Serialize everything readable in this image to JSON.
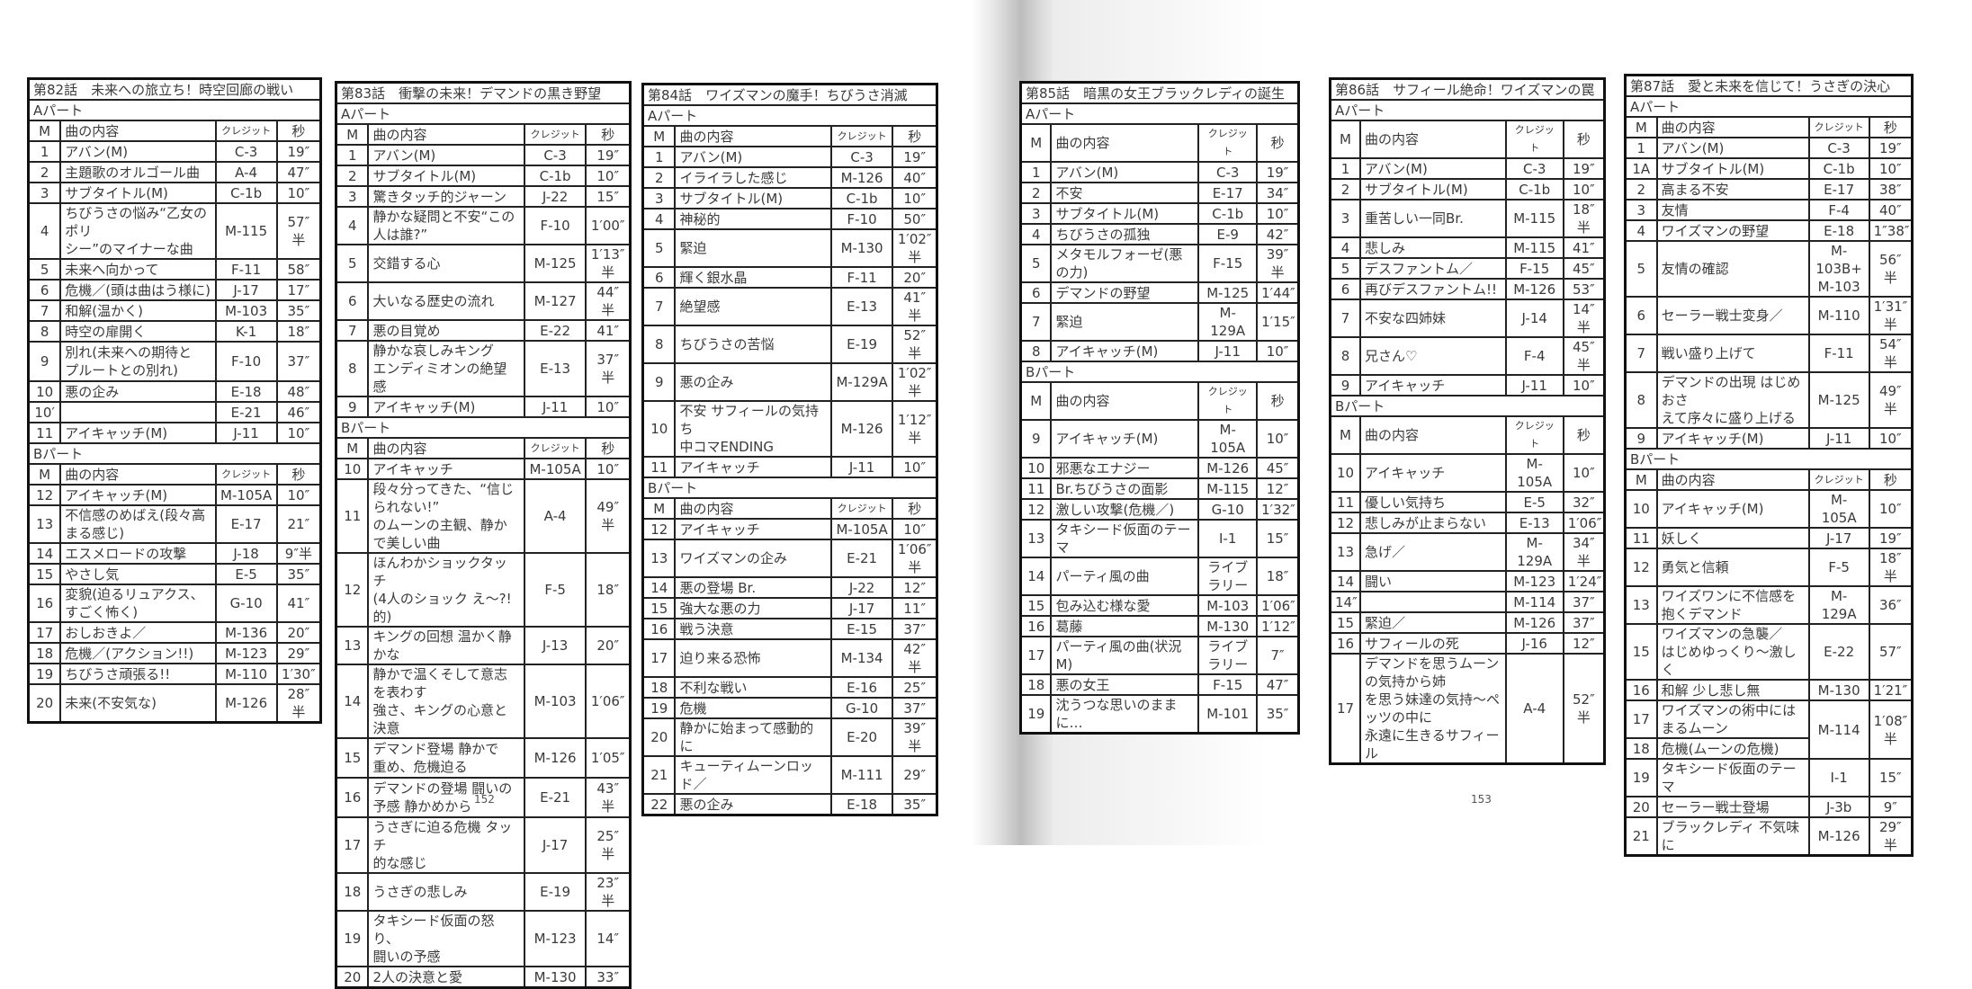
{
  "page_numbers": {
    "left": "152",
    "right": "153"
  },
  "headers": {
    "m": "M",
    "content": "曲の内容",
    "credit": "クレジット",
    "sec": "秒"
  },
  "parts": {
    "a": "Aパート",
    "b": "Bパート"
  },
  "episodes": [
    {
      "title": "第82話　未来への旅立ち！時空回廊の戦い",
      "a_rows": [
        {
          "m": "1",
          "content": "アバン(M)",
          "credit": "C-3",
          "sec": "19″"
        },
        {
          "m": "2",
          "content": "主題歌のオルゴール曲",
          "credit": "A-4",
          "sec": "47″"
        },
        {
          "m": "3",
          "content": "サブタイトル(M)",
          "credit": "C-1b",
          "sec": "10″"
        },
        {
          "m": "4",
          "content": "ちびうさの悩み“乙女のポリ\nシー”のマイナーな曲",
          "credit": "M-115",
          "sec": "57″半"
        },
        {
          "m": "5",
          "content": "未来へ向かって",
          "credit": "F-11",
          "sec": "58″"
        },
        {
          "m": "6",
          "content": "危機／(頭は曲はう様に)",
          "credit": "J-17",
          "sec": "17″"
        },
        {
          "m": "7",
          "content": "和解(温かく)",
          "credit": "M-103",
          "sec": "35″"
        },
        {
          "m": "8",
          "content": "時空の扉開く",
          "credit": "K-1",
          "sec": "18″"
        },
        {
          "m": "9",
          "content": "別れ(未来への期待と\nプルートとの別れ)",
          "credit": "F-10",
          "sec": "37″"
        },
        {
          "m": "10",
          "content": "悪の企み",
          "credit": "E-18",
          "sec": "48″"
        },
        {
          "m": "10′",
          "content": "",
          "credit": "E-21",
          "sec": "46″"
        },
        {
          "m": "11",
          "content": "アイキャッチ(M)",
          "credit": "J-11",
          "sec": "10″"
        }
      ],
      "b_rows": [
        {
          "m": "12",
          "content": "アイキャッチ(M)",
          "credit": "M-105A",
          "sec": "10″"
        },
        {
          "m": "13",
          "content": "不信感のめばえ(段々高まる感じ)",
          "credit": "E-17",
          "sec": "21″"
        },
        {
          "m": "14",
          "content": "エスメロードの攻撃",
          "credit": "J-18",
          "sec": "9″半"
        },
        {
          "m": "15",
          "content": "やさし気",
          "credit": "E-5",
          "sec": "35″"
        },
        {
          "m": "16",
          "content": "変貌(迫るリュアクス、すごく怖く)",
          "credit": "G-10",
          "sec": "41″"
        },
        {
          "m": "17",
          "content": "おしおきよ／",
          "credit": "M-136",
          "sec": "20″"
        },
        {
          "m": "18",
          "content": "危機／(アクション!!)",
          "credit": "M-123",
          "sec": "29″"
        },
        {
          "m": "19",
          "content": "ちびうさ頑張る!!",
          "credit": "M-110",
          "sec": "1′30″"
        },
        {
          "m": "20",
          "content": "未来(不安気な)",
          "credit": "M-126",
          "sec": "28″半"
        }
      ]
    },
    {
      "title": "第83話　衝撃の未来！デマンドの黒き野望",
      "a_rows": [
        {
          "m": "1",
          "content": "アバン(M)",
          "credit": "C-3",
          "sec": "19″"
        },
        {
          "m": "2",
          "content": "サブタイトル(M)",
          "credit": "C-1b",
          "sec": "10″"
        },
        {
          "m": "3",
          "content": "驚きタッチ的ジャーン",
          "credit": "J-22",
          "sec": "15″"
        },
        {
          "m": "4",
          "content": "静かな疑問と不安“この人は誰?”",
          "credit": "F-10",
          "sec": "1′00″"
        },
        {
          "m": "5",
          "content": "交錯する心",
          "credit": "M-125",
          "sec": "1′13″半"
        },
        {
          "m": "6",
          "content": "大いなる歴史の流れ",
          "credit": "M-127",
          "sec": "44″半"
        },
        {
          "m": "7",
          "content": "悪の目覚め",
          "credit": "E-22",
          "sec": "41″"
        },
        {
          "m": "8",
          "content": "静かな哀しみキング\nエンディミオンの絶望感",
          "credit": "E-13",
          "sec": "37″半"
        },
        {
          "m": "9",
          "content": "アイキャッチ(M)",
          "credit": "J-11",
          "sec": "10″"
        }
      ],
      "b_rows": [
        {
          "m": "10",
          "content": "アイキャッチ",
          "credit": "M-105A",
          "sec": "10″"
        },
        {
          "m": "11",
          "content": "段々分ってきた、“信じられない!”\nのムーンの主観、静かで美しい曲",
          "credit": "A-4",
          "sec": "49″半"
        },
        {
          "m": "12",
          "content": "ほんわかショックタッチ\n(4人のショック え〜?!的)",
          "credit": "F-5",
          "sec": "18″"
        },
        {
          "m": "13",
          "content": "キングの回想 温かく静かな",
          "credit": "J-13",
          "sec": "20″"
        },
        {
          "m": "14",
          "content": "静かで温くそして意志を表わす\n強さ、キングの心意と決意",
          "credit": "M-103",
          "sec": "1′06″"
        },
        {
          "m": "15",
          "content": "デマンド登場 静かで\n重め、危機迫る",
          "credit": "M-126",
          "sec": "1′05″"
        },
        {
          "m": "16",
          "content": "デマンドの登場 闘いの\n予感 静かめから",
          "credit": "E-21",
          "sec": "43″半"
        },
        {
          "m": "17",
          "content": "うさぎに迫る危機 タッチ\n的な感じ",
          "credit": "J-17",
          "sec": "25″半"
        },
        {
          "m": "18",
          "content": "うさぎの悲しみ",
          "credit": "E-19",
          "sec": "23″半"
        },
        {
          "m": "19",
          "content": "タキシード仮面の怒り、\n闘いの予感",
          "credit": "M-123",
          "sec": "14″"
        },
        {
          "m": "20",
          "content": "2人の決意と愛",
          "credit": "M-130",
          "sec": "33″"
        }
      ]
    },
    {
      "title": "第84話　ワイズマンの魔手！ちびうさ消滅",
      "a_rows": [
        {
          "m": "1",
          "content": "アバン(M)",
          "credit": "C-3",
          "sec": "19″"
        },
        {
          "m": "2",
          "content": "イライラした感じ",
          "credit": "M-126",
          "sec": "40″"
        },
        {
          "m": "3",
          "content": "サブタイトル(M)",
          "credit": "C-1b",
          "sec": "10″"
        },
        {
          "m": "4",
          "content": "神秘的",
          "credit": "F-10",
          "sec": "50″"
        },
        {
          "m": "5",
          "content": "緊迫",
          "credit": "M-130",
          "sec": "1′02″半"
        },
        {
          "m": "6",
          "content": "輝く銀水晶",
          "credit": "F-11",
          "sec": "20″"
        },
        {
          "m": "7",
          "content": "絶望感",
          "credit": "E-13",
          "sec": "41″半"
        },
        {
          "m": "8",
          "content": "ちびうさの苦悩",
          "credit": "E-19",
          "sec": "52″半"
        },
        {
          "m": "9",
          "content": "悪の企み",
          "credit": "M-129A",
          "sec": "1′02″半"
        },
        {
          "m": "10",
          "content": "不安 サフィールの気持ち\n中コマENDING",
          "credit": "M-126",
          "sec": "1′12″半"
        },
        {
          "m": "11",
          "content": "アイキャッチ",
          "credit": "J-11",
          "sec": "10″"
        }
      ],
      "b_rows": [
        {
          "m": "12",
          "content": "アイキャッチ",
          "credit": "M-105A",
          "sec": "10″"
        },
        {
          "m": "13",
          "content": "ワイズマンの企み",
          "credit": "E-21",
          "sec": "1′06″半"
        },
        {
          "m": "14",
          "content": "悪の登場 Br.",
          "credit": "J-22",
          "sec": "12″"
        },
        {
          "m": "15",
          "content": "強大な悪の力",
          "credit": "J-17",
          "sec": "11″"
        },
        {
          "m": "16",
          "content": "戦う決意",
          "credit": "E-15",
          "sec": "37″"
        },
        {
          "m": "17",
          "content": "迫り来る恐怖",
          "credit": "M-134",
          "sec": "42″半"
        },
        {
          "m": "18",
          "content": "不利な戦い",
          "credit": "E-16",
          "sec": "25″"
        },
        {
          "m": "19",
          "content": "危機",
          "credit": "G-10",
          "sec": "37″"
        },
        {
          "m": "20",
          "content": "静かに始まって感動的に",
          "credit": "E-20",
          "sec": "39″半"
        },
        {
          "m": "21",
          "content": "キューティムーンロッド／",
          "credit": "M-111",
          "sec": "29″"
        },
        {
          "m": "22",
          "content": "悪の企み",
          "credit": "E-18",
          "sec": "35″"
        }
      ]
    },
    {
      "title": "第85話　暗黒の女王ブラックレディの誕生",
      "a_rows": [
        {
          "m": "1",
          "content": "アバン(M)",
          "credit": "C-3",
          "sec": "19″"
        },
        {
          "m": "2",
          "content": "不安",
          "credit": "E-17",
          "sec": "34″"
        },
        {
          "m": "3",
          "content": "サブタイトル(M)",
          "credit": "C-1b",
          "sec": "10″"
        },
        {
          "m": "4",
          "content": "ちびうさの孤独",
          "credit": "E-9",
          "sec": "42″"
        },
        {
          "m": "5",
          "content": "メタモルフォーゼ(悪の力)",
          "credit": "F-15",
          "sec": "39″半"
        },
        {
          "m": "6",
          "content": "デマンドの野望",
          "credit": "M-125",
          "sec": "1′44″"
        },
        {
          "m": "7",
          "content": "緊迫",
          "credit": "M-129A",
          "sec": "1′15″"
        },
        {
          "m": "8",
          "content": "アイキャッチ(M)",
          "credit": "J-11",
          "sec": "10″"
        }
      ],
      "b_rows": [
        {
          "m": "9",
          "content": "アイキャッチ(M)",
          "credit": "M-105A",
          "sec": "10″"
        },
        {
          "m": "10",
          "content": "邪悪なエナジー",
          "credit": "M-126",
          "sec": "45″"
        },
        {
          "m": "11",
          "content": "Br.ちびうさの面影",
          "credit": "M-115",
          "sec": "12″"
        },
        {
          "m": "12",
          "content": "激しい攻撃(危機／)",
          "credit": "G-10",
          "sec": "1′32″"
        },
        {
          "m": "13",
          "content": "タキシード仮面のテーマ",
          "credit": "I-1",
          "sec": "15″"
        },
        {
          "m": "14",
          "content": "パーティ風の曲",
          "credit": "ライブラリー",
          "sec": "18″"
        },
        {
          "m": "15",
          "content": "包み込む様な愛",
          "credit": "M-103",
          "sec": "1′06″"
        },
        {
          "m": "16",
          "content": "葛藤",
          "credit": "M-130",
          "sec": "1′12″"
        },
        {
          "m": "17",
          "content": "パーティ風の曲(状況M)",
          "credit": "ライブラリー",
          "sec": "7″"
        },
        {
          "m": "18",
          "content": "悪の女王",
          "credit": "F-15",
          "sec": "47″"
        },
        {
          "m": "19",
          "content": "沈うつな思いのままに…",
          "credit": "M-101",
          "sec": "35″"
        }
      ]
    },
    {
      "title": "第86話　サフィール絶命！ワイズマンの罠",
      "a_rows": [
        {
          "m": "1",
          "content": "アバン(M)",
          "credit": "C-3",
          "sec": "19″"
        },
        {
          "m": "2",
          "content": "サブタイトル(M)",
          "credit": "C-1b",
          "sec": "10″"
        },
        {
          "m": "3",
          "content": "重苦しい一同Br.",
          "credit": "M-115",
          "sec": "18″半"
        },
        {
          "m": "4",
          "content": "悲しみ",
          "credit": "M-115",
          "sec": "41″"
        },
        {
          "m": "5",
          "content": "デスファントム／",
          "credit": "F-15",
          "sec": "45″"
        },
        {
          "m": "6",
          "content": "再びデスファントム!!",
          "credit": "M-126",
          "sec": "53″"
        },
        {
          "m": "7",
          "content": "不安な四姉妹",
          "credit": "J-14",
          "sec": "14″半"
        },
        {
          "m": "8",
          "content": "兄さん♡",
          "credit": "F-4",
          "sec": "45″半"
        },
        {
          "m": "9",
          "content": "アイキャッチ",
          "credit": "J-11",
          "sec": "10″"
        }
      ],
      "b_rows": [
        {
          "m": "10",
          "content": "アイキャッチ",
          "credit": "M-105A",
          "sec": "10″"
        },
        {
          "m": "11",
          "content": "優しい気持ち",
          "credit": "E-5",
          "sec": "32″"
        },
        {
          "m": "12",
          "content": "悲しみが止まらない",
          "credit": "E-13",
          "sec": "1′06″"
        },
        {
          "m": "13",
          "content": "急げ／",
          "credit": "M-129A",
          "sec": "34″半"
        },
        {
          "m": "14",
          "content": "闘い",
          "credit": "M-123",
          "sec": "1′24″"
        },
        {
          "m": "14″",
          "content": "",
          "credit": "M-114",
          "sec": "37″"
        },
        {
          "m": "15",
          "content": "緊迫／",
          "credit": "M-126",
          "sec": "37″"
        },
        {
          "m": "16",
          "content": "サフィールの死",
          "credit": "J-16",
          "sec": "12″"
        },
        {
          "m": "17",
          "content": "デマンドを思うムーンの気持から姉\nを思う妹達の気持〜ペッツの中に\n永遠に生きるサフィール",
          "credit": "A-4",
          "sec": "52″半"
        }
      ]
    },
    {
      "title": "第87話　愛と未来を信じて！うさぎの決心",
      "a_rows": [
        {
          "m": "1",
          "content": "アバン(M)",
          "credit": "C-3",
          "sec": "19″"
        },
        {
          "m": "1A",
          "content": "サブタイトル(M)",
          "credit": "C-1b",
          "sec": "10″"
        },
        {
          "m": "2",
          "content": "高まる不安",
          "credit": "E-17",
          "sec": "38″"
        },
        {
          "m": "3",
          "content": "友情",
          "credit": "F-4",
          "sec": "40″"
        },
        {
          "m": "4",
          "content": "ワイズマンの野望",
          "credit": "E-18",
          "sec": "1″38″"
        },
        {
          "m": "5",
          "content": "友情の確認",
          "credit": "M-103B+\nM-103",
          "sec": "56″半"
        },
        {
          "m": "6",
          "content": "セーラー戦士変身／",
          "credit": "M-110",
          "sec": "1′31″半"
        },
        {
          "m": "7",
          "content": "戦い盛り上げて",
          "credit": "F-11",
          "sec": "54″半"
        },
        {
          "m": "8",
          "content": "デマンドの出現 はじめおさ\nえて序々に盛り上げる",
          "credit": "M-125",
          "sec": "49″半"
        },
        {
          "m": "9",
          "content": "アイキャッチ(M)",
          "credit": "J-11",
          "sec": "10″"
        }
      ],
      "b_rows": [
        {
          "m": "10",
          "content": "アイキャッチ(M)",
          "credit": "M-105A",
          "sec": "10″"
        },
        {
          "m": "11",
          "content": "妖しく",
          "credit": "J-17",
          "sec": "19″"
        },
        {
          "m": "12",
          "content": "勇気と信頼",
          "credit": "F-5",
          "sec": "18″半"
        },
        {
          "m": "13",
          "content": "ワイズワンに不信感を抱くデマンド",
          "credit": "M-129A",
          "sec": "36″"
        },
        {
          "m": "15",
          "content": "ワイズマンの急襲／\nはじめゆっくり〜激しく",
          "credit": "E-22",
          "sec": "57″"
        },
        {
          "m": "16",
          "content": "和解 少し悲し無",
          "credit": "M-130",
          "sec": "1′21″"
        },
        {
          "m": "17",
          "content": "ワイズマンの術中にはまるムーン",
          "credit": "M-114",
          "sec": "1′08″半"
        },
        {
          "m": "18",
          "content": "危機(ムーンの危機)"
        },
        {
          "m": "19",
          "content": "タキシード仮面のテーマ",
          "credit": "I-1",
          "sec": "15″"
        },
        {
          "m": "20",
          "content": "セーラー戦士登場",
          "credit": "J-3b",
          "sec": "9″"
        },
        {
          "m": "21",
          "content": "ブラックレディ 不気味に",
          "credit": "M-126",
          "sec": "29″半"
        }
      ]
    }
  ]
}
